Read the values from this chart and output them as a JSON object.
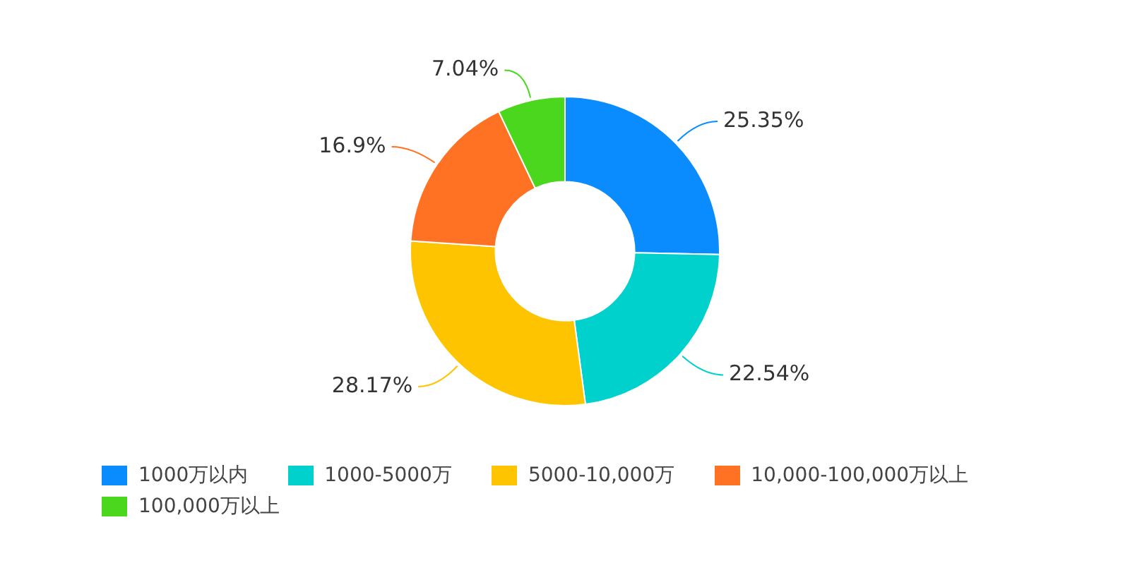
{
  "chart_data": {
    "type": "donut",
    "categories": [
      "1000万以内",
      "1000-5000万",
      "5000-10,000万",
      "10,000-100,000万以上",
      "100,000万以上"
    ],
    "values": [
      25.35,
      22.54,
      28.17,
      16.9,
      7.04
    ],
    "colors": [
      "#0a8cff",
      "#00d1cc",
      "#ffc400",
      "#ff7223",
      "#4ad71e"
    ],
    "value_labels": [
      "25.35%",
      "22.54%",
      "28.17%",
      "16.9%",
      "7.04%"
    ],
    "legend": "bottom"
  }
}
